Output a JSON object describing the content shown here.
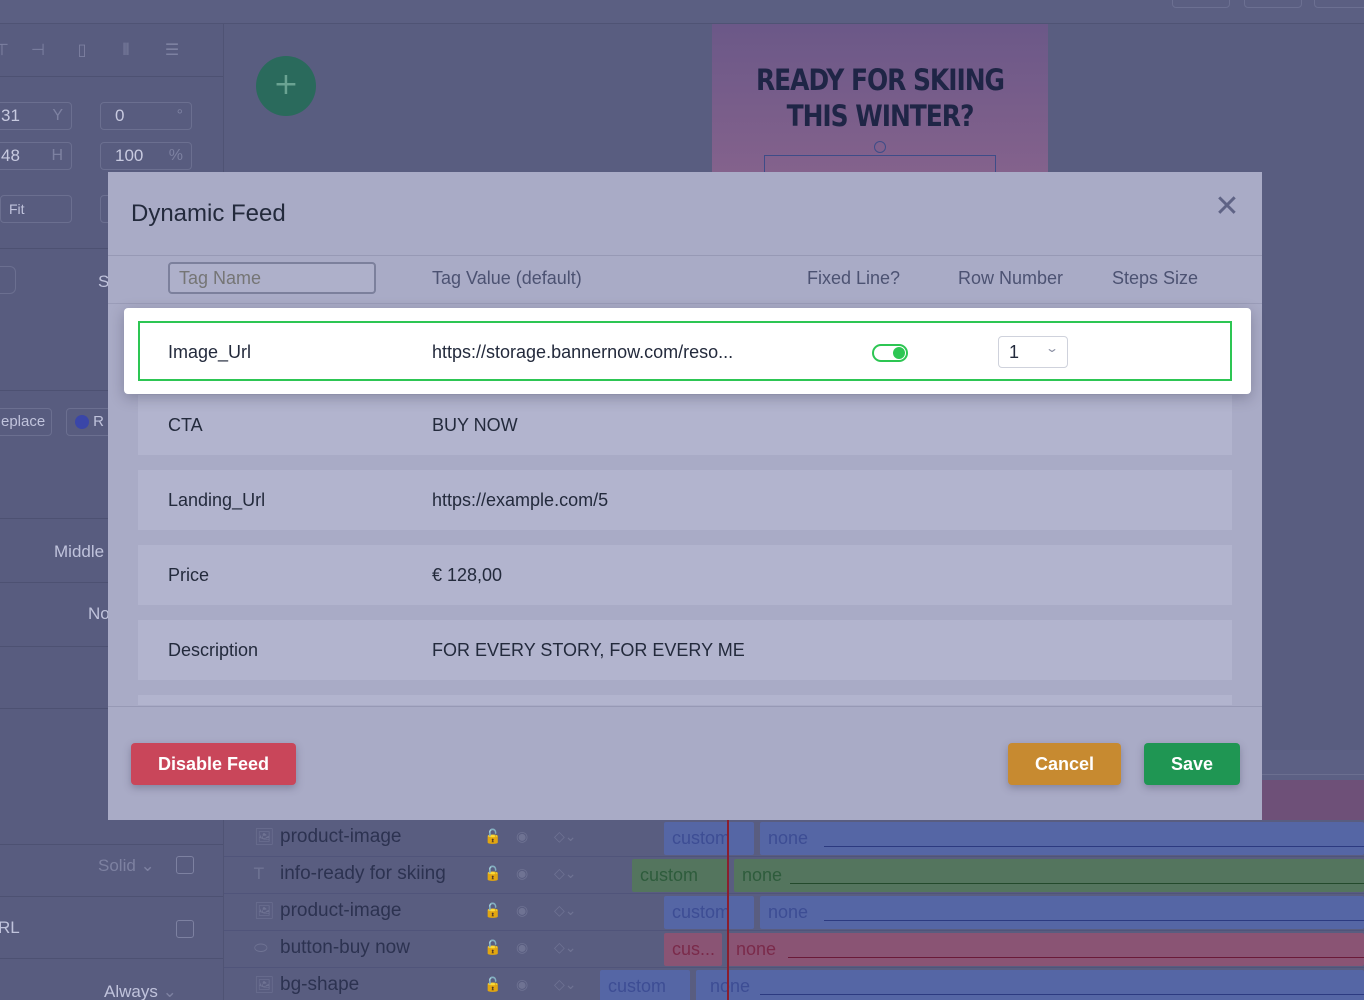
{
  "modal": {
    "title": "Dynamic Feed",
    "close_icon": "close-icon",
    "columns": {
      "tag_name_placeholder": "Tag Name",
      "tag_value": "Tag Value (default)",
      "fixed_line": "Fixed Line?",
      "row_number": "Row Number",
      "steps_size": "Steps Size"
    },
    "highlighted_row": {
      "tag": "Image_Url",
      "value": "https://storage.bannernow.com/reso...",
      "fixed_line": true,
      "row_number": "1"
    },
    "rows": [
      {
        "tag": "CTA",
        "value": "BUY NOW"
      },
      {
        "tag": "Landing_Url",
        "value": "https://example.com/5"
      },
      {
        "tag": "Price",
        "value": "€ 128,00"
      },
      {
        "tag": "Description",
        "value": "FOR EVERY STORY, FOR EVERY ME"
      }
    ],
    "buttons": {
      "disable": "Disable Feed",
      "cancel": "Cancel",
      "save": "Save"
    },
    "colors": {
      "disable": "#c9465a",
      "cancel": "#c78a30",
      "save": "#1f9653",
      "highlight_border": "#2dc653"
    }
  },
  "background": {
    "banner_title_line1": "READY FOR SKIING",
    "banner_title_line2": "THIS WINTER?",
    "add_button": "+",
    "left_panel": {
      "field_x": "31",
      "label_y": "Y",
      "field_rotation": "0",
      "unit_deg": "°",
      "field_w": "48",
      "label_h": "H",
      "field_opacity": "100",
      "unit_pct": "%",
      "fit": "Fit",
      "replace": "eplace",
      "middle": "Middle",
      "no": "No",
      "solid": "Solid",
      "url": "RL",
      "always": "Always",
      "s_label": "S",
      "r_label": "R"
    },
    "layers": [
      {
        "name": "product-image",
        "icon": "image-icon",
        "bar_label": "custom",
        "line_label": "none"
      },
      {
        "name": "info-ready for skiing",
        "icon": "text-icon",
        "bar_label": "custom",
        "line_label": "none"
      },
      {
        "name": "product-image",
        "icon": "image-icon",
        "bar_label": "custom",
        "line_label": "none"
      },
      {
        "name": "button-buy now",
        "icon": "button-icon",
        "bar_label": "cus...",
        "line_label": "none"
      },
      {
        "name": "bg-shape",
        "icon": "image-icon",
        "bar_label": "custom",
        "line_label": "none"
      }
    ]
  }
}
